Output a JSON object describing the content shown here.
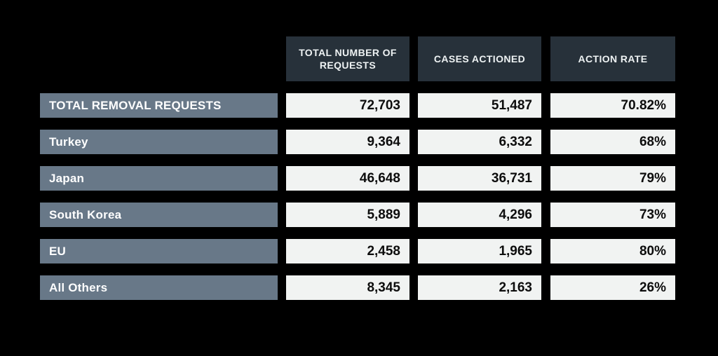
{
  "colors": {
    "background": "#000000",
    "header_bg": "#27313a",
    "row_label_bg": "#687888",
    "cell_bg": "#f1f3f2",
    "header_text": "#eef2f3",
    "label_text": "#ffffff",
    "value_text": "#0d0d0d"
  },
  "table": {
    "columns": [
      {
        "label": "TOTAL NUMBER OF REQUESTS"
      },
      {
        "label": "CASES ACTIONED"
      },
      {
        "label": "ACTION RATE"
      }
    ],
    "rows": [
      {
        "label": "TOTAL REMOVAL REQUESTS",
        "requests": "72,703",
        "actioned": "51,487",
        "rate": "70.82%"
      },
      {
        "label": "Turkey",
        "requests": "9,364",
        "actioned": "6,332",
        "rate": "68%"
      },
      {
        "label": "Japan",
        "requests": "46,648",
        "actioned": "36,731",
        "rate": "79%"
      },
      {
        "label": "South Korea",
        "requests": "5,889",
        "actioned": "4,296",
        "rate": "73%"
      },
      {
        "label": "EU",
        "requests": "2,458",
        "actioned": "1,965",
        "rate": "80%"
      },
      {
        "label": "All Others",
        "requests": "8,345",
        "actioned": "2,163",
        "rate": "26%"
      }
    ]
  },
  "chart_data": {
    "type": "table",
    "columns": [
      "",
      "TOTAL NUMBER OF REQUESTS",
      "CASES ACTIONED",
      "ACTION RATE"
    ],
    "rows": [
      [
        "TOTAL REMOVAL REQUESTS",
        72703,
        51487,
        70.82
      ],
      [
        "Turkey",
        9364,
        6332,
        68
      ],
      [
        "Japan",
        46648,
        36731,
        79
      ],
      [
        "South Korea",
        5889,
        4296,
        73
      ],
      [
        "EU",
        2458,
        1965,
        80
      ],
      [
        "All Others",
        8345,
        2163,
        26
      ]
    ]
  }
}
